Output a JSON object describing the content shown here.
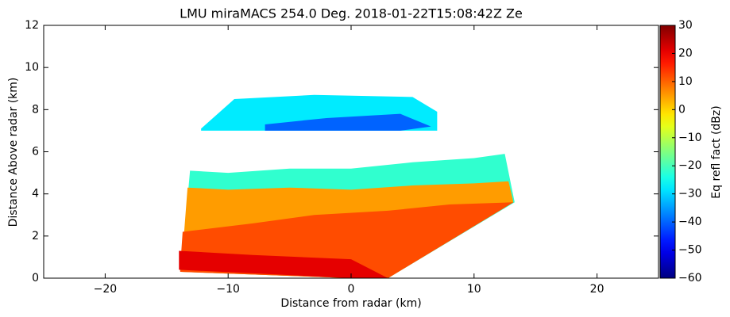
{
  "chart_data": {
    "type": "rhi",
    "title": "LMU miraMACS 254.0 Deg. 2018-01-22T15:08:42Z  Ze",
    "xlabel": "Distance from radar (km)",
    "ylabel": "Distance Above radar  (km)",
    "colorbar_label": "Eq refl fact (dBz)",
    "xlim": [
      -25,
      25
    ],
    "xticks": [
      {
        "value": -20,
        "label": "−20"
      },
      {
        "value": -10,
        "label": "−10"
      },
      0,
      10,
      20
    ],
    "ylim": [
      0,
      12
    ],
    "yticks": [
      0,
      2,
      4,
      6,
      8,
      10,
      12
    ],
    "clim": [
      -60,
      30
    ],
    "cticks": [
      {
        "value": -60,
        "label": "−60"
      },
      {
        "value": -50,
        "label": "−50"
      },
      {
        "value": -40,
        "label": "−40"
      },
      {
        "value": -30,
        "label": "−30"
      },
      {
        "value": -20,
        "label": "−20"
      },
      {
        "value": -10,
        "label": "−10"
      },
      0,
      10,
      20,
      30
    ],
    "colormap": "jet",
    "regions": [
      {
        "x": [
          -13.8,
          -13.1,
          -10,
          -5,
          0,
          5,
          10,
          12.5,
          13.3,
          3,
          0,
          -13.8
        ],
        "y": [
          0.5,
          5.1,
          5.0,
          5.2,
          5.2,
          5.5,
          5.7,
          5.9,
          3.6,
          0,
          0,
          0.3
        ],
        "value": -22
      },
      {
        "x": [
          -13.8,
          -13.3,
          -10,
          -5,
          0,
          5,
          10,
          12.8,
          13.2,
          3,
          0,
          -13.8
        ],
        "y": [
          0.5,
          4.3,
          4.2,
          4.3,
          4.2,
          4.4,
          4.5,
          4.6,
          3.6,
          0,
          0,
          0.3
        ],
        "value": 5
      },
      {
        "x": [
          -13.9,
          -13.7,
          -8,
          -3,
          3,
          8,
          13.2,
          3,
          0,
          -13.9
        ],
        "y": [
          0.5,
          2.2,
          2.6,
          3.0,
          3.2,
          3.5,
          3.6,
          0,
          0,
          0.3
        ],
        "value": 12
      },
      {
        "x": [
          -14,
          -14,
          0,
          3,
          0,
          -8
        ],
        "y": [
          1.3,
          0.4,
          0,
          0,
          0.9,
          1.1
        ],
        "value": 21
      },
      {
        "x": [
          -12.2,
          -9.5,
          -3,
          5,
          7,
          7,
          -2,
          -12.2
        ],
        "y": [
          7.1,
          8.5,
          8.7,
          8.6,
          7.9,
          7.0,
          7.0,
          7.0
        ],
        "value": -28
      },
      {
        "x": [
          -7,
          -2,
          4,
          6.5,
          4,
          -7
        ],
        "y": [
          7.3,
          7.6,
          7.8,
          7.2,
          7.0,
          7.0
        ],
        "value": -40
      }
    ]
  }
}
